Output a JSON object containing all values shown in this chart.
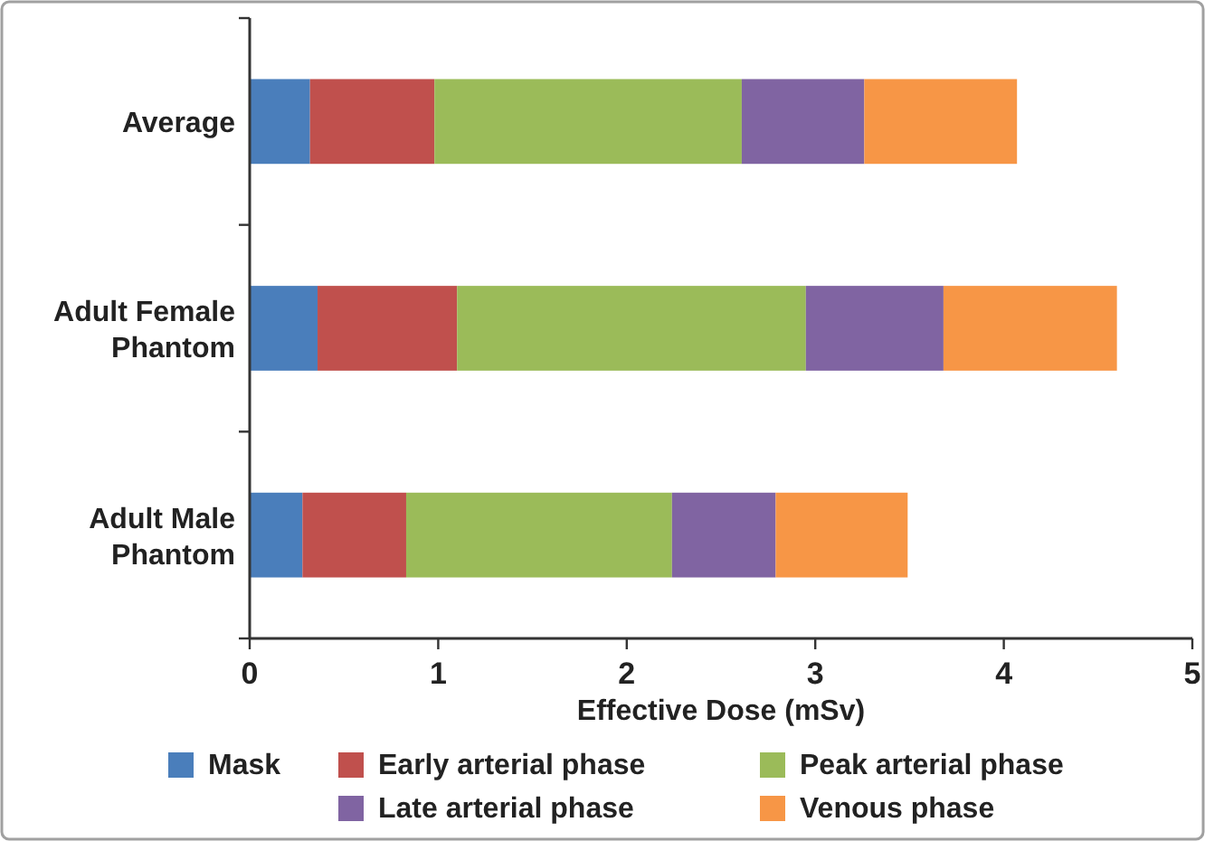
{
  "chart_data": {
    "type": "bar",
    "orientation": "horizontal",
    "stacked": true,
    "xlabel": "Effective Dose (mSv)",
    "categories": [
      "Average",
      "Adult Female Phantom",
      "Adult Male Phantom"
    ],
    "series": [
      {
        "name": "Mask",
        "color": "#4a7ebb",
        "values": [
          0.32,
          0.36,
          0.28
        ]
      },
      {
        "name": "Early arterial phase",
        "color": "#c0504d",
        "values": [
          0.66,
          0.74,
          0.55
        ]
      },
      {
        "name": "Peak arterial phase",
        "color": "#9bbb59",
        "values": [
          1.63,
          1.85,
          1.41
        ]
      },
      {
        "name": "Late arterial phase",
        "color": "#8064a2",
        "values": [
          0.65,
          0.73,
          0.55
        ]
      },
      {
        "name": "Venous phase",
        "color": "#f79646",
        "values": [
          0.81,
          0.92,
          0.7
        ]
      }
    ],
    "xlim": [
      0,
      5
    ],
    "xticks": [
      0,
      1,
      2,
      3,
      4,
      5
    ],
    "grid": false,
    "legend": "bottom"
  }
}
